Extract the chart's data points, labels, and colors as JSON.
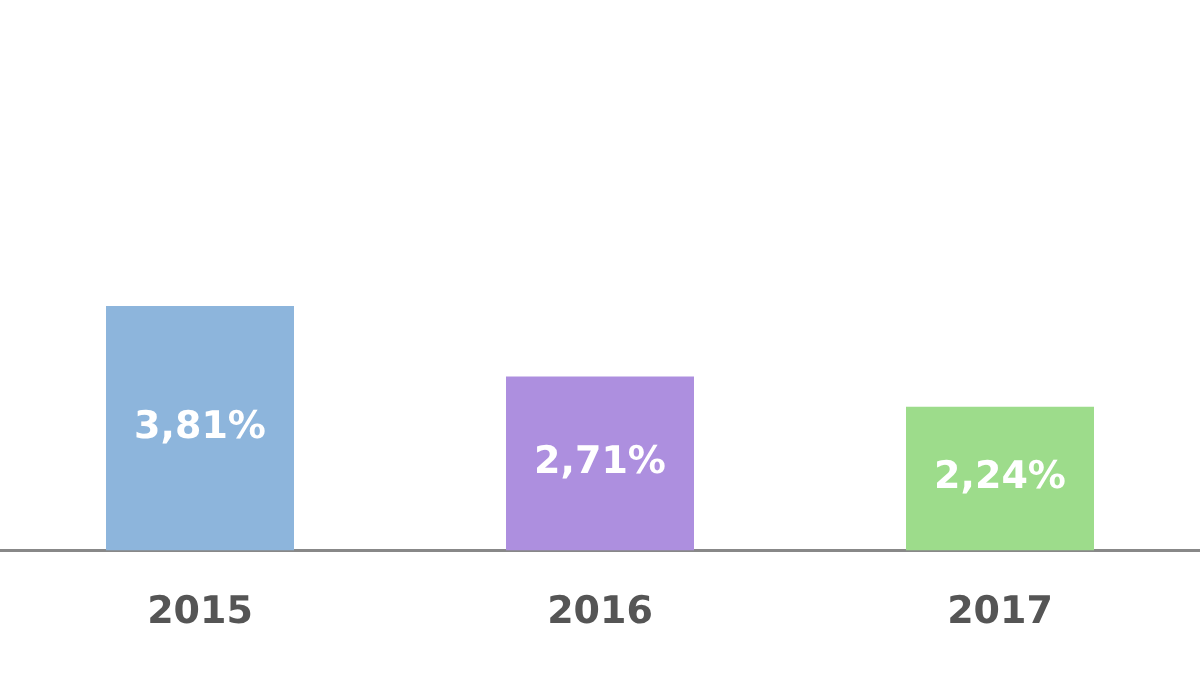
{
  "chart_data": {
    "type": "bar",
    "categories": [
      "2015",
      "2016",
      "2017"
    ],
    "values": [
      3.81,
      2.71,
      2.24
    ],
    "colors": [
      "#8db5dc",
      "#ad8fdf",
      "#9ddc8b"
    ],
    "value_labels": [
      "3,81%",
      "2,71%",
      "2,24%"
    ],
    "legend": false,
    "grid": false
  }
}
